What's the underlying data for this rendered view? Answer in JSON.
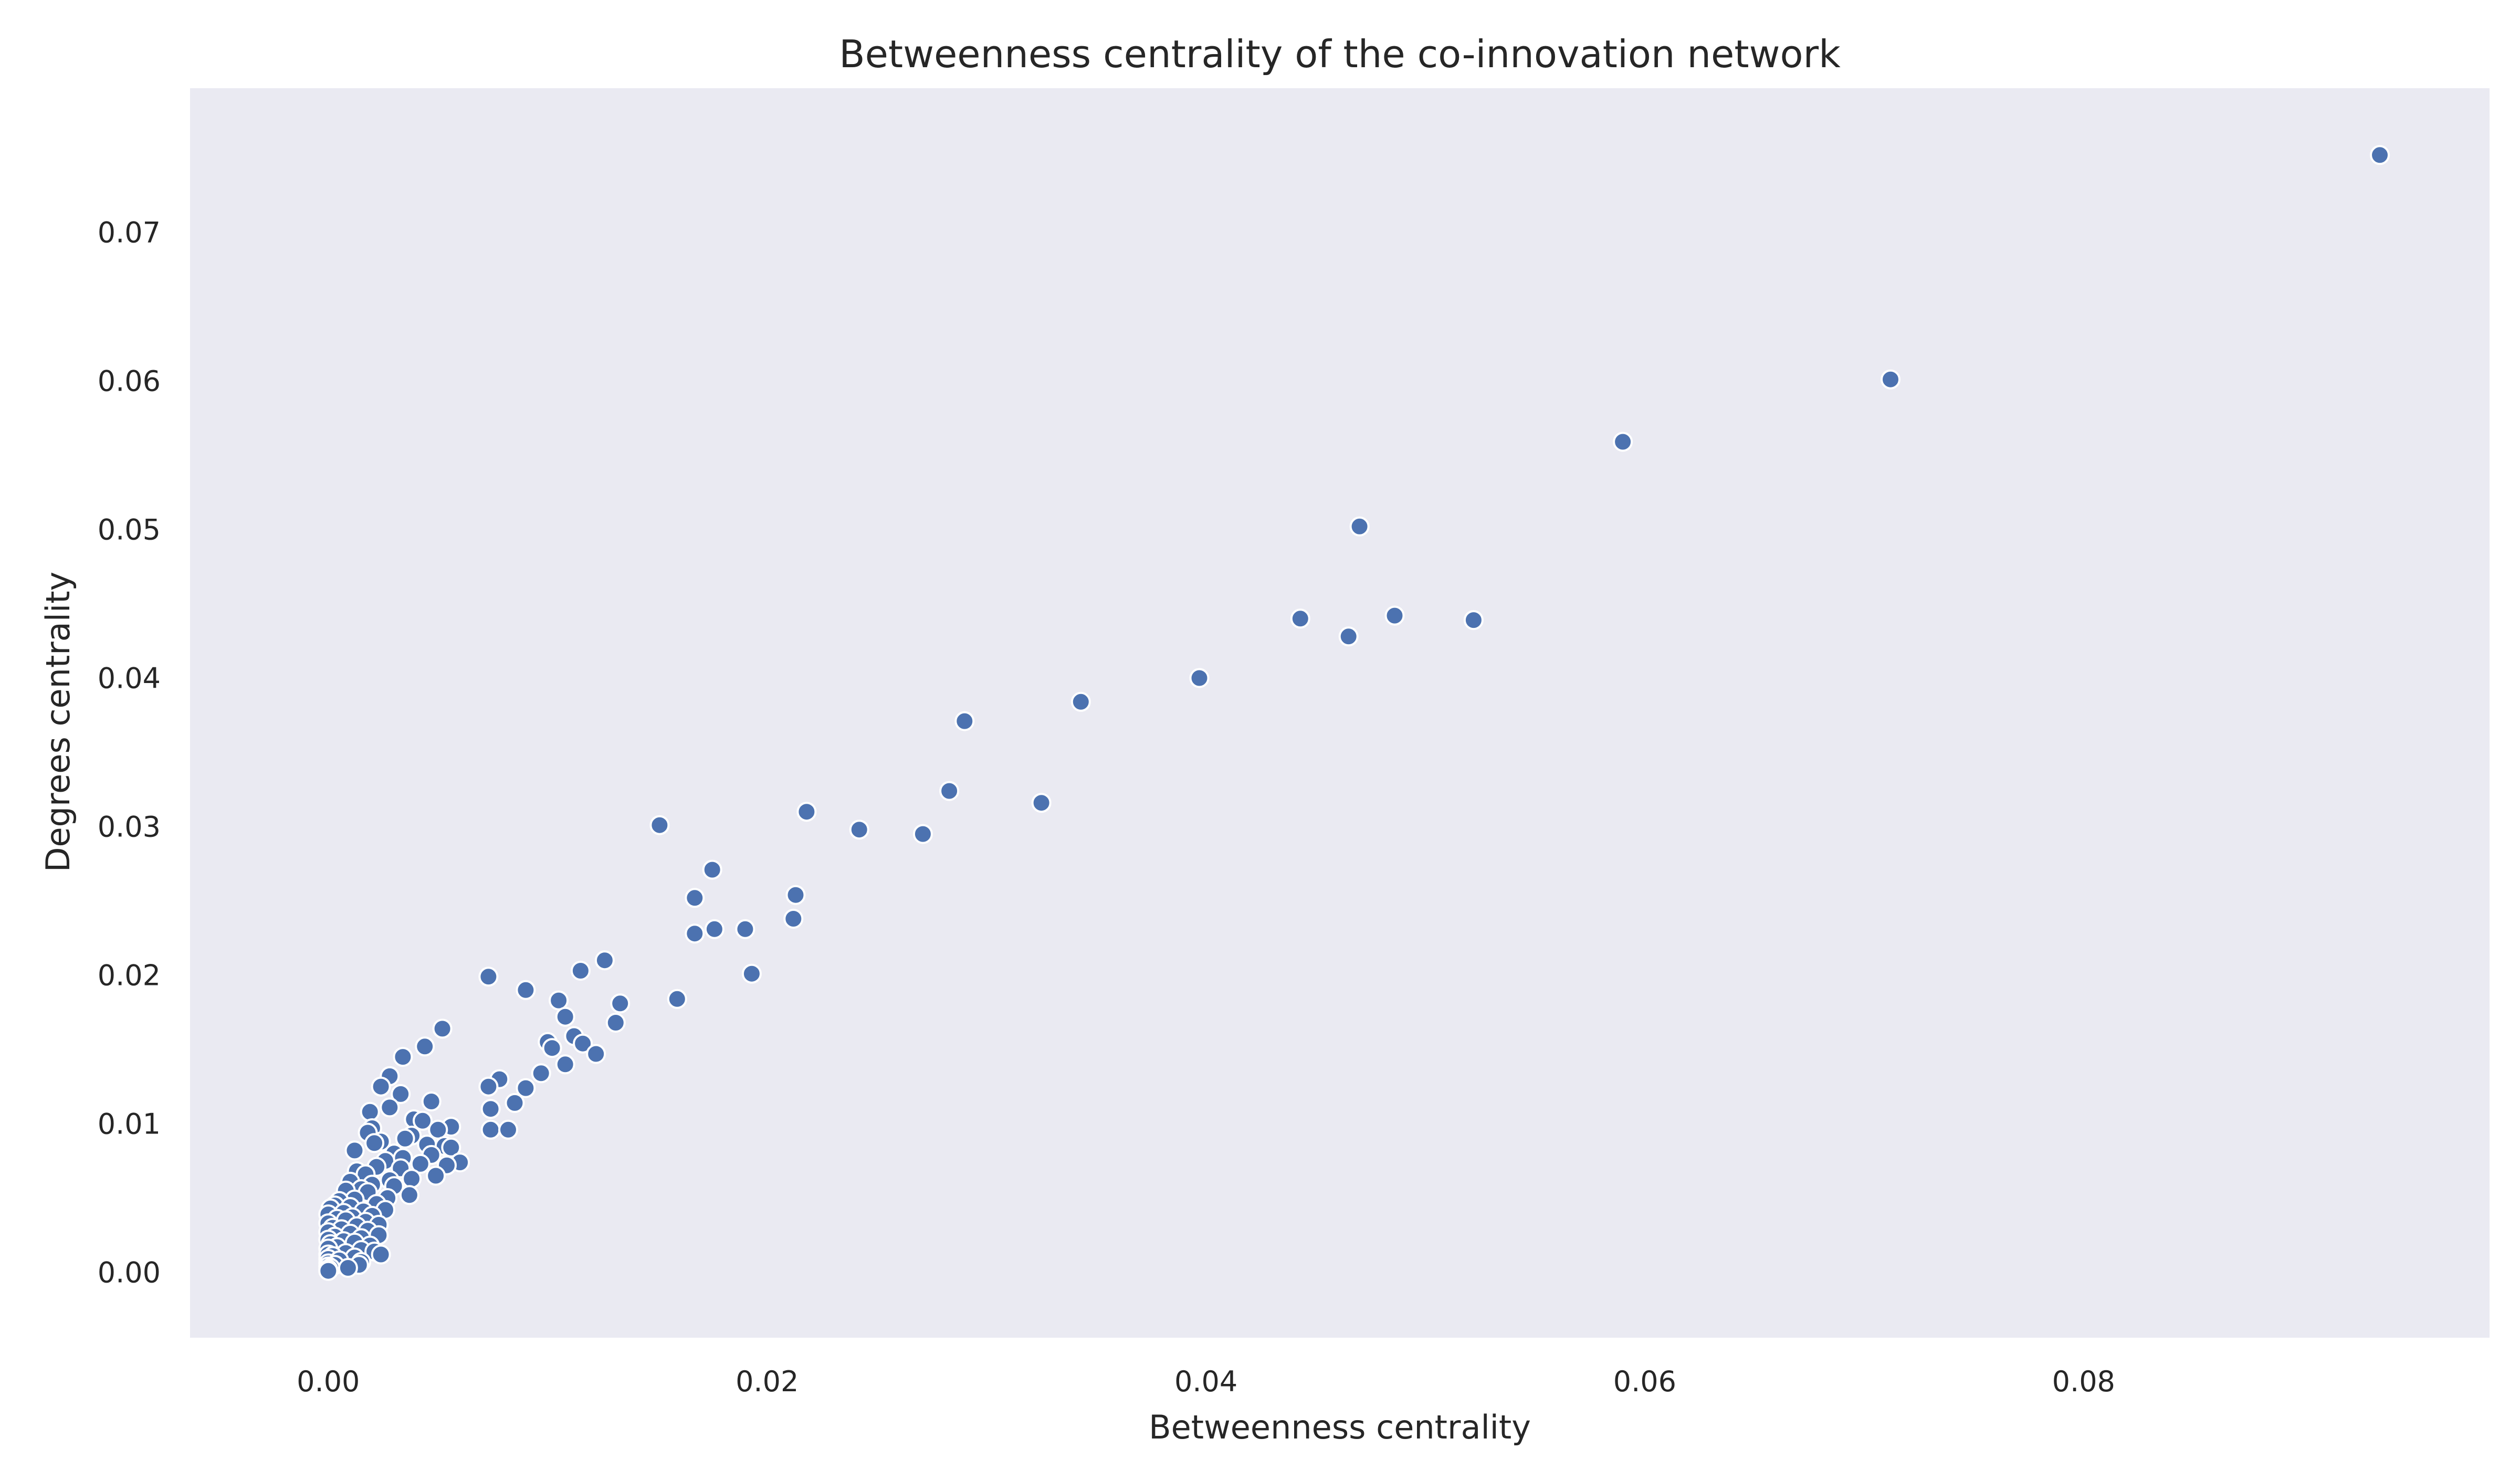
{
  "chart_data": {
    "type": "scatter",
    "title": "Betweenness centrality of the co-innovation network",
    "xlabel": "Betweenness centrality",
    "ylabel": "Degrees centrality",
    "xlim": [
      -0.0063,
      0.0985
    ],
    "ylim": [
      -0.0044,
      0.0797
    ],
    "xticks": [
      0.0,
      0.02,
      0.04,
      0.06,
      0.08
    ],
    "xtick_labels": [
      "0.00",
      "0.02",
      "0.04",
      "0.06",
      "0.08"
    ],
    "yticks": [
      0.0,
      0.01,
      0.02,
      0.03,
      0.04,
      0.05,
      0.06,
      0.07
    ],
    "ytick_labels": [
      "0.00",
      "0.01",
      "0.02",
      "0.03",
      "0.04",
      "0.05",
      "0.06",
      "0.07"
    ],
    "grid": false,
    "background": "#eaeaf2",
    "point_color": "#4c72b0",
    "points": [
      [
        0.0935,
        0.0752
      ],
      [
        0.0712,
        0.0601
      ],
      [
        0.059,
        0.0559
      ],
      [
        0.047,
        0.0502
      ],
      [
        0.0443,
        0.044
      ],
      [
        0.0465,
        0.0428
      ],
      [
        0.0486,
        0.0442
      ],
      [
        0.0522,
        0.0439
      ],
      [
        0.0397,
        0.04
      ],
      [
        0.0343,
        0.0384
      ],
      [
        0.029,
        0.0371
      ],
      [
        0.0283,
        0.0324
      ],
      [
        0.0325,
        0.0316
      ],
      [
        0.0218,
        0.031
      ],
      [
        0.0242,
        0.0298
      ],
      [
        0.0271,
        0.0295
      ],
      [
        0.0151,
        0.0301
      ],
      [
        0.0175,
        0.0271
      ],
      [
        0.0213,
        0.0254
      ],
      [
        0.0167,
        0.0252
      ],
      [
        0.0212,
        0.0238
      ],
      [
        0.019,
        0.0231
      ],
      [
        0.0176,
        0.0231
      ],
      [
        0.0167,
        0.0228
      ],
      [
        0.0193,
        0.0201
      ],
      [
        0.0126,
        0.021
      ],
      [
        0.0115,
        0.0203
      ],
      [
        0.0073,
        0.0199
      ],
      [
        0.009,
        0.019
      ],
      [
        0.0159,
        0.0184
      ],
      [
        0.0105,
        0.0183
      ],
      [
        0.0133,
        0.0181
      ],
      [
        0.0108,
        0.0172
      ],
      [
        0.0131,
        0.0168
      ],
      [
        0.0052,
        0.0164
      ],
      [
        0.0112,
        0.0159
      ],
      [
        0.01,
        0.0155
      ],
      [
        0.0116,
        0.0154
      ],
      [
        0.0044,
        0.0152
      ],
      [
        0.0102,
        0.0151
      ],
      [
        0.0122,
        0.0147
      ],
      [
        0.0034,
        0.0145
      ],
      [
        0.0108,
        0.014
      ],
      [
        0.0097,
        0.0134
      ],
      [
        0.0028,
        0.0132
      ],
      [
        0.0078,
        0.013
      ],
      [
        0.0024,
        0.0125
      ],
      [
        0.0073,
        0.0125
      ],
      [
        0.009,
        0.0124
      ],
      [
        0.0033,
        0.012
      ],
      [
        0.0047,
        0.0115
      ],
      [
        0.0085,
        0.0114
      ],
      [
        0.0028,
        0.0111
      ],
      [
        0.0074,
        0.011
      ],
      [
        0.0019,
        0.0108
      ],
      [
        0.0039,
        0.0103
      ],
      [
        0.0043,
        0.0102
      ],
      [
        0.0056,
        0.0098
      ],
      [
        0.002,
        0.0097
      ],
      [
        0.005,
        0.0096
      ],
      [
        0.0074,
        0.0096
      ],
      [
        0.0082,
        0.0096
      ],
      [
        0.0018,
        0.0094
      ],
      [
        0.0038,
        0.0092
      ],
      [
        0.0035,
        0.009
      ],
      [
        0.0024,
        0.0088
      ],
      [
        0.0021,
        0.0087
      ],
      [
        0.0045,
        0.0086
      ],
      [
        0.0053,
        0.0085
      ],
      [
        0.0056,
        0.0084
      ],
      [
        0.0012,
        0.0082
      ],
      [
        0.003,
        0.008
      ],
      [
        0.0047,
        0.0079
      ],
      [
        0.0034,
        0.0077
      ],
      [
        0.0026,
        0.0075
      ],
      [
        0.006,
        0.0074
      ],
      [
        0.0042,
        0.0073
      ],
      [
        0.0054,
        0.0072
      ],
      [
        0.0022,
        0.0071
      ],
      [
        0.0033,
        0.007
      ],
      [
        0.0013,
        0.0068
      ],
      [
        0.0017,
        0.0066
      ],
      [
        0.0049,
        0.0065
      ],
      [
        0.0038,
        0.0063
      ],
      [
        0.0028,
        0.0062
      ],
      [
        0.001,
        0.0061
      ],
      [
        0.002,
        0.0059
      ],
      [
        0.003,
        0.0058
      ],
      [
        0.0015,
        0.0056
      ],
      [
        0.0008,
        0.0055
      ],
      [
        0.0018,
        0.0054
      ],
      [
        0.0037,
        0.0052
      ],
      [
        0.0027,
        0.005
      ],
      [
        0.0012,
        0.0049
      ],
      [
        0.0005,
        0.0048
      ],
      [
        0.0022,
        0.0046
      ],
      [
        0.0003,
        0.0045
      ],
      [
        0.001,
        0.0044
      ],
      [
        0.0001,
        0.0043
      ],
      [
        0.0026,
        0.0042
      ],
      [
        0.0016,
        0.0041
      ],
      [
        0.0007,
        0.004
      ],
      [
        0.0,
        0.0039
      ],
      [
        0.002,
        0.0038
      ],
      [
        0.0011,
        0.0037
      ],
      [
        0.0004,
        0.0036
      ],
      [
        0.0008,
        0.0035
      ],
      [
        0.0017,
        0.0034
      ],
      [
        0.0,
        0.0033
      ],
      [
        0.0023,
        0.0032
      ],
      [
        0.0013,
        0.0031
      ],
      [
        0.0002,
        0.003
      ],
      [
        0.0006,
        0.0029
      ],
      [
        0.0018,
        0.0028
      ],
      [
        0.0,
        0.0027
      ],
      [
        0.001,
        0.0026
      ],
      [
        0.0023,
        0.0025
      ],
      [
        0.0003,
        0.0024
      ],
      [
        0.0015,
        0.0023
      ],
      [
        0.0,
        0.0022
      ],
      [
        0.0007,
        0.0021
      ],
      [
        0.0012,
        0.002
      ],
      [
        0.0001,
        0.0019
      ],
      [
        0.0019,
        0.0018
      ],
      [
        0.0004,
        0.0017
      ],
      [
        0.0,
        0.0016
      ],
      [
        0.0015,
        0.0015
      ],
      [
        0.0021,
        0.0014
      ],
      [
        0.0008,
        0.0013
      ],
      [
        0.0,
        0.0012
      ],
      [
        0.0002,
        0.0011
      ],
      [
        0.0012,
        0.001
      ],
      [
        0.0,
        0.0009
      ],
      [
        0.0005,
        0.0008
      ],
      [
        0.0015,
        0.0007
      ],
      [
        0.0,
        0.0006
      ],
      [
        0.0003,
        0.0005
      ],
      [
        0.0,
        0.0004
      ],
      [
        0.0001,
        0.0003
      ],
      [
        0.0,
        0.0002
      ],
      [
        0.0,
        0.0001
      ],
      [
        0.0024,
        0.0012
      ],
      [
        0.0014,
        0.0005
      ],
      [
        0.0009,
        0.0003
      ]
    ]
  }
}
